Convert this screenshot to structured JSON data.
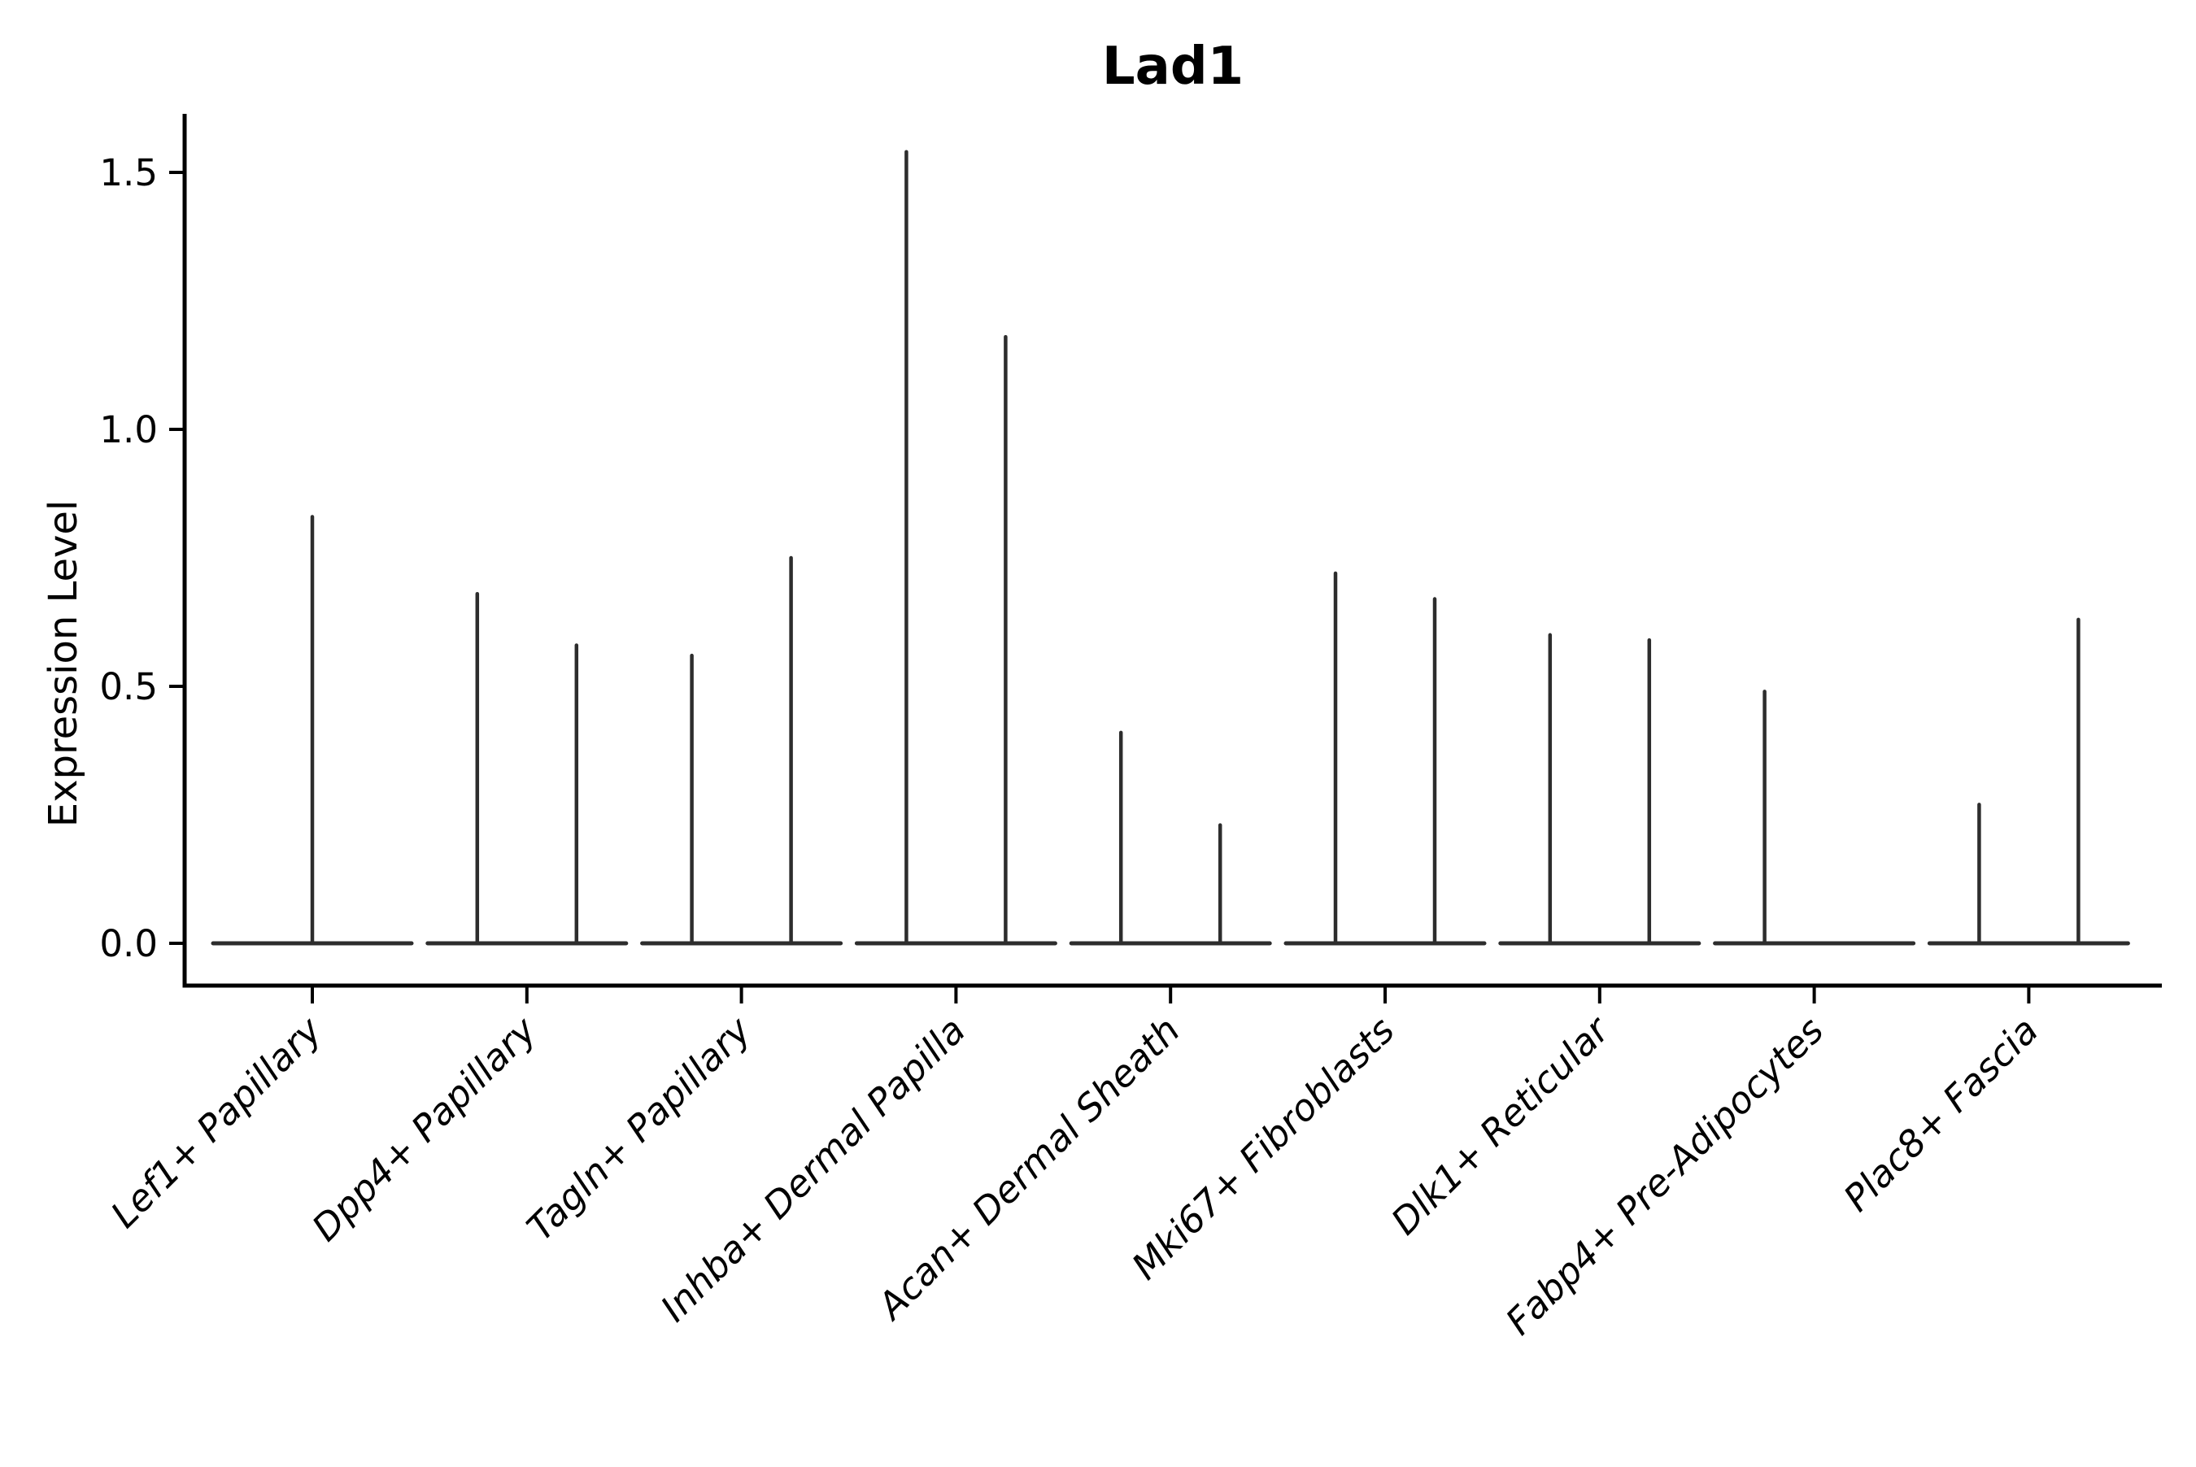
{
  "chart_data": {
    "type": "violin",
    "title": "Lad1",
    "ylabel": "Expression Level",
    "xlabel": "",
    "y_tick_labels": [
      "0.0",
      "0.5",
      "1.0",
      "1.5"
    ],
    "y_tick_values": [
      0.0,
      0.5,
      1.0,
      1.5
    ],
    "ylim": [
      -0.08,
      1.61
    ],
    "grid": false,
    "legend": null,
    "categories": [
      "Lef1+ Papillary",
      "Dpp4+ Papillary",
      "Tagln+ Papillary",
      "Inhba+ Dermal Papilla",
      "Acan+ Dermal Sheath",
      "Mki67+ Fibroblasts",
      "Dlk1+ Reticular",
      "Fabp4+ Pre-Adipocytes",
      "Plac8+ Fascia"
    ],
    "violins": [
      {
        "category": "Lef1+ Papillary",
        "spikes": [
          {
            "slot": "center",
            "max_expression": 0.83
          }
        ]
      },
      {
        "category": "Dpp4+ Papillary",
        "spikes": [
          {
            "slot": "left",
            "max_expression": 0.68
          },
          {
            "slot": "right",
            "max_expression": 0.58
          }
        ]
      },
      {
        "category": "Tagln+ Papillary",
        "spikes": [
          {
            "slot": "left",
            "max_expression": 0.56
          },
          {
            "slot": "right",
            "max_expression": 0.75
          }
        ]
      },
      {
        "category": "Inhba+ Dermal Papilla",
        "spikes": [
          {
            "slot": "left",
            "max_expression": 1.54
          },
          {
            "slot": "right",
            "max_expression": 1.18
          }
        ]
      },
      {
        "category": "Acan+ Dermal Sheath",
        "spikes": [
          {
            "slot": "left",
            "max_expression": 0.41
          },
          {
            "slot": "right",
            "max_expression": 0.23
          }
        ]
      },
      {
        "category": "Mki67+ Fibroblasts",
        "spikes": [
          {
            "slot": "left",
            "max_expression": 0.72
          },
          {
            "slot": "right",
            "max_expression": 0.67
          }
        ]
      },
      {
        "category": "Dlk1+ Reticular",
        "spikes": [
          {
            "slot": "left",
            "max_expression": 0.6
          },
          {
            "slot": "right",
            "max_expression": 0.59
          }
        ]
      },
      {
        "category": "Fabp4+ Pre-Adipocytes",
        "spikes": [
          {
            "slot": "left",
            "max_expression": 0.49
          }
        ]
      },
      {
        "category": "Plac8+ Fascia",
        "spikes": [
          {
            "slot": "left",
            "max_expression": 0.27
          },
          {
            "slot": "right",
            "max_expression": 0.63
          }
        ]
      }
    ],
    "style": {
      "violin_color": "#2d2d2d",
      "axis_color": "#000000",
      "text_color": "#000000",
      "background": "#ffffff"
    }
  }
}
